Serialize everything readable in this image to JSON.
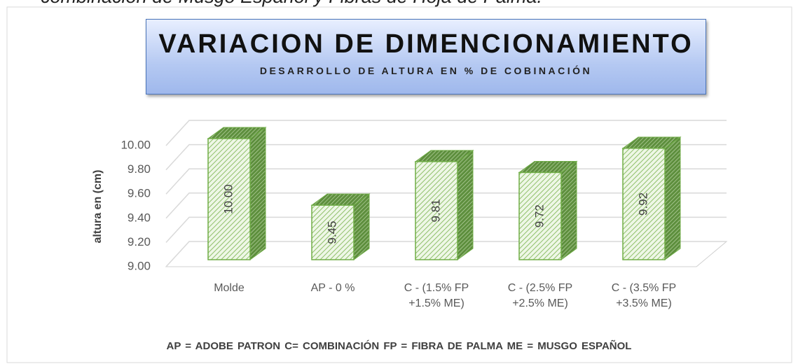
{
  "caption": "combinación de Musgo Español y Fibras de Hoja de Palma.",
  "chart_data": {
    "type": "bar3d",
    "title": "VARIACION DE DIMENCIONAMIENTO",
    "subtitle": "DESARROLLO DE ALTURA EN % DE COBINACIÓN",
    "y_label": "altura en (cm)",
    "note": "AP = ADOBE PATRON   C= COMBINACIÓN   FP = FIBRA DE PALMA   ME = MUSGO ESPAÑOL",
    "categories": [
      "Molde",
      "AP - 0 %",
      "C - (1.5% FP +1.5% ME)",
      "C - (2.5% FP +2.5% ME)",
      "C - (3.5% FP +3.5% ME)"
    ],
    "values": [
      10,
      9.45,
      9.81,
      9.72,
      9.92
    ],
    "value_labels": [
      "10.00",
      "9.45",
      "9.81",
      "9.72",
      "9.92"
    ],
    "color": "#70ad47",
    "ylim": [
      9,
      10
    ],
    "yticks": [
      {
        "value": 9,
        "label": "9.00"
      },
      {
        "value": 9.2,
        "label": "9.20"
      },
      {
        "value": 9.4,
        "label": "9.40"
      },
      {
        "value": 9.6,
        "label": "9.60"
      },
      {
        "value": 9.8,
        "label": "9.80"
      },
      {
        "value": 10,
        "label": "10.00"
      }
    ],
    "grid": true
  }
}
